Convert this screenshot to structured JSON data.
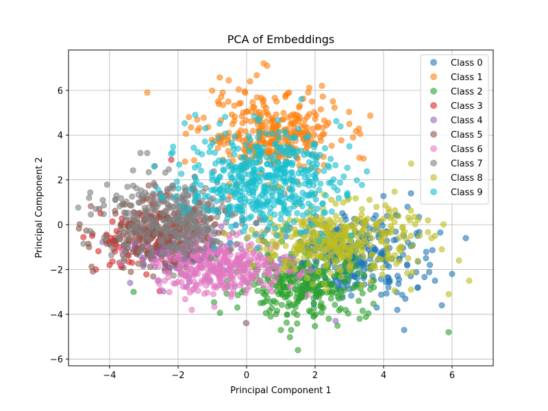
{
  "chart_data": {
    "type": "scatter",
    "title": "PCA of Embeddings",
    "xlabel": "Principal Component 1",
    "ylabel": "Principal Component 2",
    "xlim": [
      -5.2,
      7.2
    ],
    "ylim": [
      -6.3,
      7.8
    ],
    "xticks": [
      -4,
      -2,
      0,
      2,
      4,
      6
    ],
    "yticks": [
      -6,
      -4,
      -2,
      0,
      2,
      4,
      6
    ],
    "xtick_labels": [
      "−4",
      "−2",
      "0",
      "2",
      "4",
      "6"
    ],
    "ytick_labels": [
      "−6",
      "−4",
      "−2",
      "0",
      "2",
      "4",
      "6"
    ],
    "grid": true,
    "legend_position": "top-right",
    "marker_alpha": 0.6,
    "series": [
      {
        "name": "Class 0",
        "color": "#1f77b4",
        "center": [
          3.0,
          -1.4
        ],
        "spread": [
          1.0,
          0.9
        ],
        "count": 320,
        "outliers": [
          [
            6.4,
            -0.6
          ],
          [
            5.7,
            -3.6
          ],
          [
            5.5,
            -2.5
          ],
          [
            4.6,
            -4.7
          ],
          [
            4.4,
            -3.8
          ],
          [
            5.0,
            -2.8
          ],
          [
            4.8,
            1.4
          ],
          [
            4.7,
            0.8
          ],
          [
            3.8,
            -3.7
          ],
          [
            6.0,
            -2.2
          ]
        ]
      },
      {
        "name": "Class 1",
        "color": "#ff7f0e",
        "center": [
          0.7,
          4.0
        ],
        "spread": [
          1.0,
          0.9
        ],
        "count": 320,
        "outliers": [
          [
            -2.9,
            5.9
          ],
          [
            0.5,
            7.2
          ],
          [
            0.6,
            7.1
          ],
          [
            2.2,
            6.2
          ],
          [
            0.1,
            6.4
          ],
          [
            -0.7,
            5.9
          ],
          [
            3.0,
            4.5
          ],
          [
            1.8,
            5.9
          ]
        ]
      },
      {
        "name": "Class 2",
        "color": "#2ca02c",
        "center": [
          1.6,
          -2.7
        ],
        "spread": [
          1.0,
          0.7
        ],
        "count": 280,
        "outliers": [
          [
            1.5,
            -5.6
          ],
          [
            5.9,
            -4.8
          ],
          [
            1.3,
            -4.7
          ],
          [
            1.0,
            -4.7
          ],
          [
            2.4,
            -4.2
          ],
          [
            0.7,
            -4.1
          ],
          [
            -3.3,
            -3.0
          ],
          [
            3.3,
            -4.2
          ]
        ]
      },
      {
        "name": "Class 3",
        "color": "#d62728",
        "center": [
          -2.6,
          -0.6
        ],
        "spread": [
          0.8,
          0.7
        ],
        "count": 160,
        "outliers": [
          [
            -4.4,
            -2.0
          ],
          [
            -4.0,
            -1.8
          ],
          [
            -2.2,
            2.9
          ],
          [
            -3.6,
            -1.1
          ]
        ]
      },
      {
        "name": "Class 4",
        "color": "#9467bd",
        "center": [
          -1.8,
          -1.3
        ],
        "spread": [
          0.8,
          0.6
        ],
        "count": 120,
        "outliers": [
          [
            -3.4,
            -2.6
          ],
          [
            2.6,
            -4.3
          ]
        ]
      },
      {
        "name": "Class 5",
        "color": "#8c564b",
        "center": [
          -2.6,
          -0.5
        ],
        "spread": [
          0.9,
          0.8
        ],
        "count": 200,
        "outliers": [
          [
            -4.6,
            -1.0
          ],
          [
            -4.5,
            -0.4
          ],
          [
            -4.3,
            0.7
          ],
          [
            -4.1,
            -0.5
          ]
        ]
      },
      {
        "name": "Class 6",
        "color": "#e377c2",
        "center": [
          -0.6,
          -1.9
        ],
        "spread": [
          1.0,
          0.6
        ],
        "count": 320,
        "outliers": [
          [
            -1.6,
            -3.8
          ],
          [
            0.0,
            -4.4
          ],
          [
            -2.5,
            -2.9
          ],
          [
            -2.6,
            -2.5
          ]
        ]
      },
      {
        "name": "Class 7",
        "color": "#7f7f7f",
        "center": [
          -2.2,
          0.3
        ],
        "spread": [
          1.0,
          0.9
        ],
        "count": 340,
        "outliers": [
          [
            -2.9,
            3.2
          ],
          [
            -3.1,
            3.2
          ],
          [
            -4.6,
            1.2
          ],
          [
            -4.4,
            0.7
          ],
          [
            -4.2,
            1.1
          ],
          [
            -3.8,
            1.3
          ]
        ]
      },
      {
        "name": "Class 8",
        "color": "#bcbd22",
        "center": [
          2.7,
          -0.7
        ],
        "spread": [
          1.1,
          0.8
        ],
        "count": 360,
        "outliers": [
          [
            6.5,
            -2.5
          ],
          [
            5.9,
            -3.1
          ],
          [
            6.2,
            -1.6
          ],
          [
            5.4,
            -0.6
          ],
          [
            5.7,
            -1.1
          ],
          [
            4.8,
            -2.9
          ]
        ]
      },
      {
        "name": "Class 9",
        "color": "#17becf",
        "center": [
          0.5,
          2.0
        ],
        "spread": [
          1.1,
          1.1
        ],
        "count": 480,
        "outliers": [
          [
            -1.5,
            4.9
          ],
          [
            1.6,
            5.6
          ],
          [
            3.0,
            3.5
          ],
          [
            -2.7,
            2.6
          ],
          [
            -1.2,
            4.3
          ]
        ]
      }
    ]
  }
}
